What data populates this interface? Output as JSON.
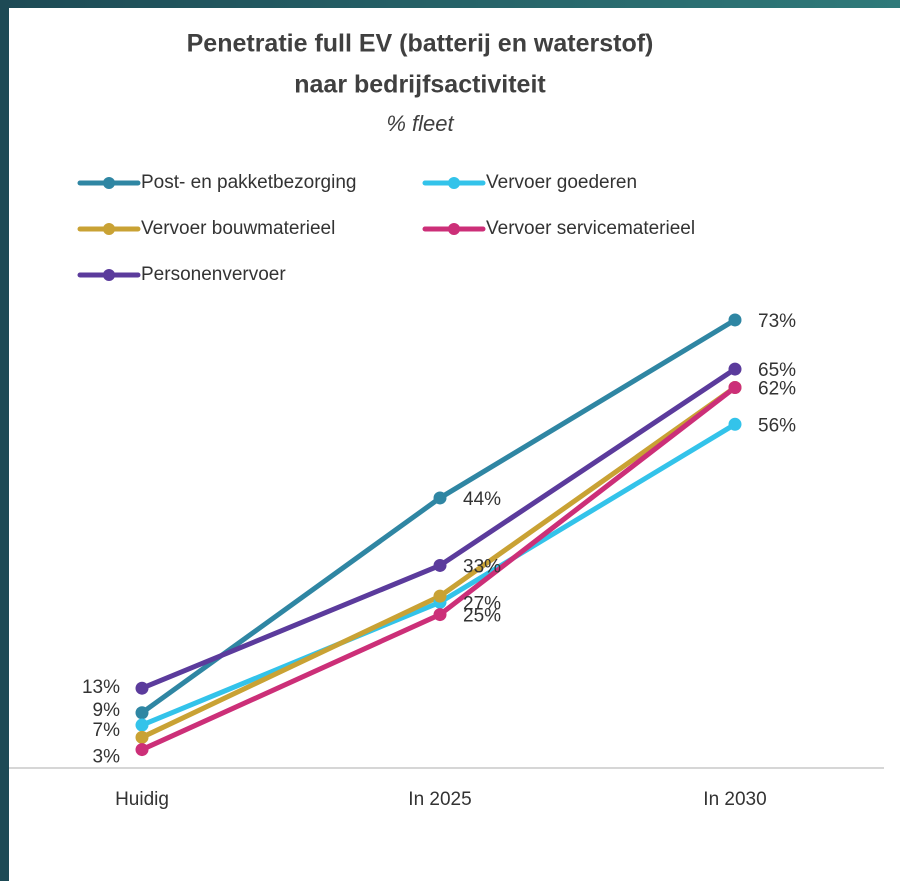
{
  "chart_data": {
    "type": "line",
    "title": "Penetratie full EV (batterij en waterstof)",
    "title_line2": "naar bedrijfsactiviteit",
    "subtitle": "% fleet",
    "categories": [
      "Huidig",
      "In 2025",
      "In 2030"
    ],
    "ylim": [
      0,
      80
    ],
    "series": [
      {
        "name": "Post- en pakketbezorging",
        "color": "#2f86a3",
        "values": [
          9,
          44,
          73
        ],
        "value_labels": [
          "9%",
          "44%",
          "73%"
        ]
      },
      {
        "name": "Vervoer goederen",
        "color": "#33c3ea",
        "values": [
          7,
          27,
          56
        ],
        "value_labels": [
          "7%",
          "27%",
          "56%"
        ]
      },
      {
        "name": "Vervoer bouwmaterieel",
        "color": "#c9a234",
        "values": [
          5,
          28,
          62
        ],
        "value_labels": [
          null,
          null,
          null
        ]
      },
      {
        "name": "Vervoer servicematerieel",
        "color": "#cc2f78",
        "values": [
          3,
          25,
          62
        ],
        "value_labels": [
          "3%",
          "25%",
          "62%"
        ]
      },
      {
        "name": "Personenvervoer",
        "color": "#5b3b9c",
        "values": [
          13,
          33,
          65
        ],
        "value_labels": [
          "13%",
          "33%",
          "65%"
        ]
      }
    ]
  }
}
